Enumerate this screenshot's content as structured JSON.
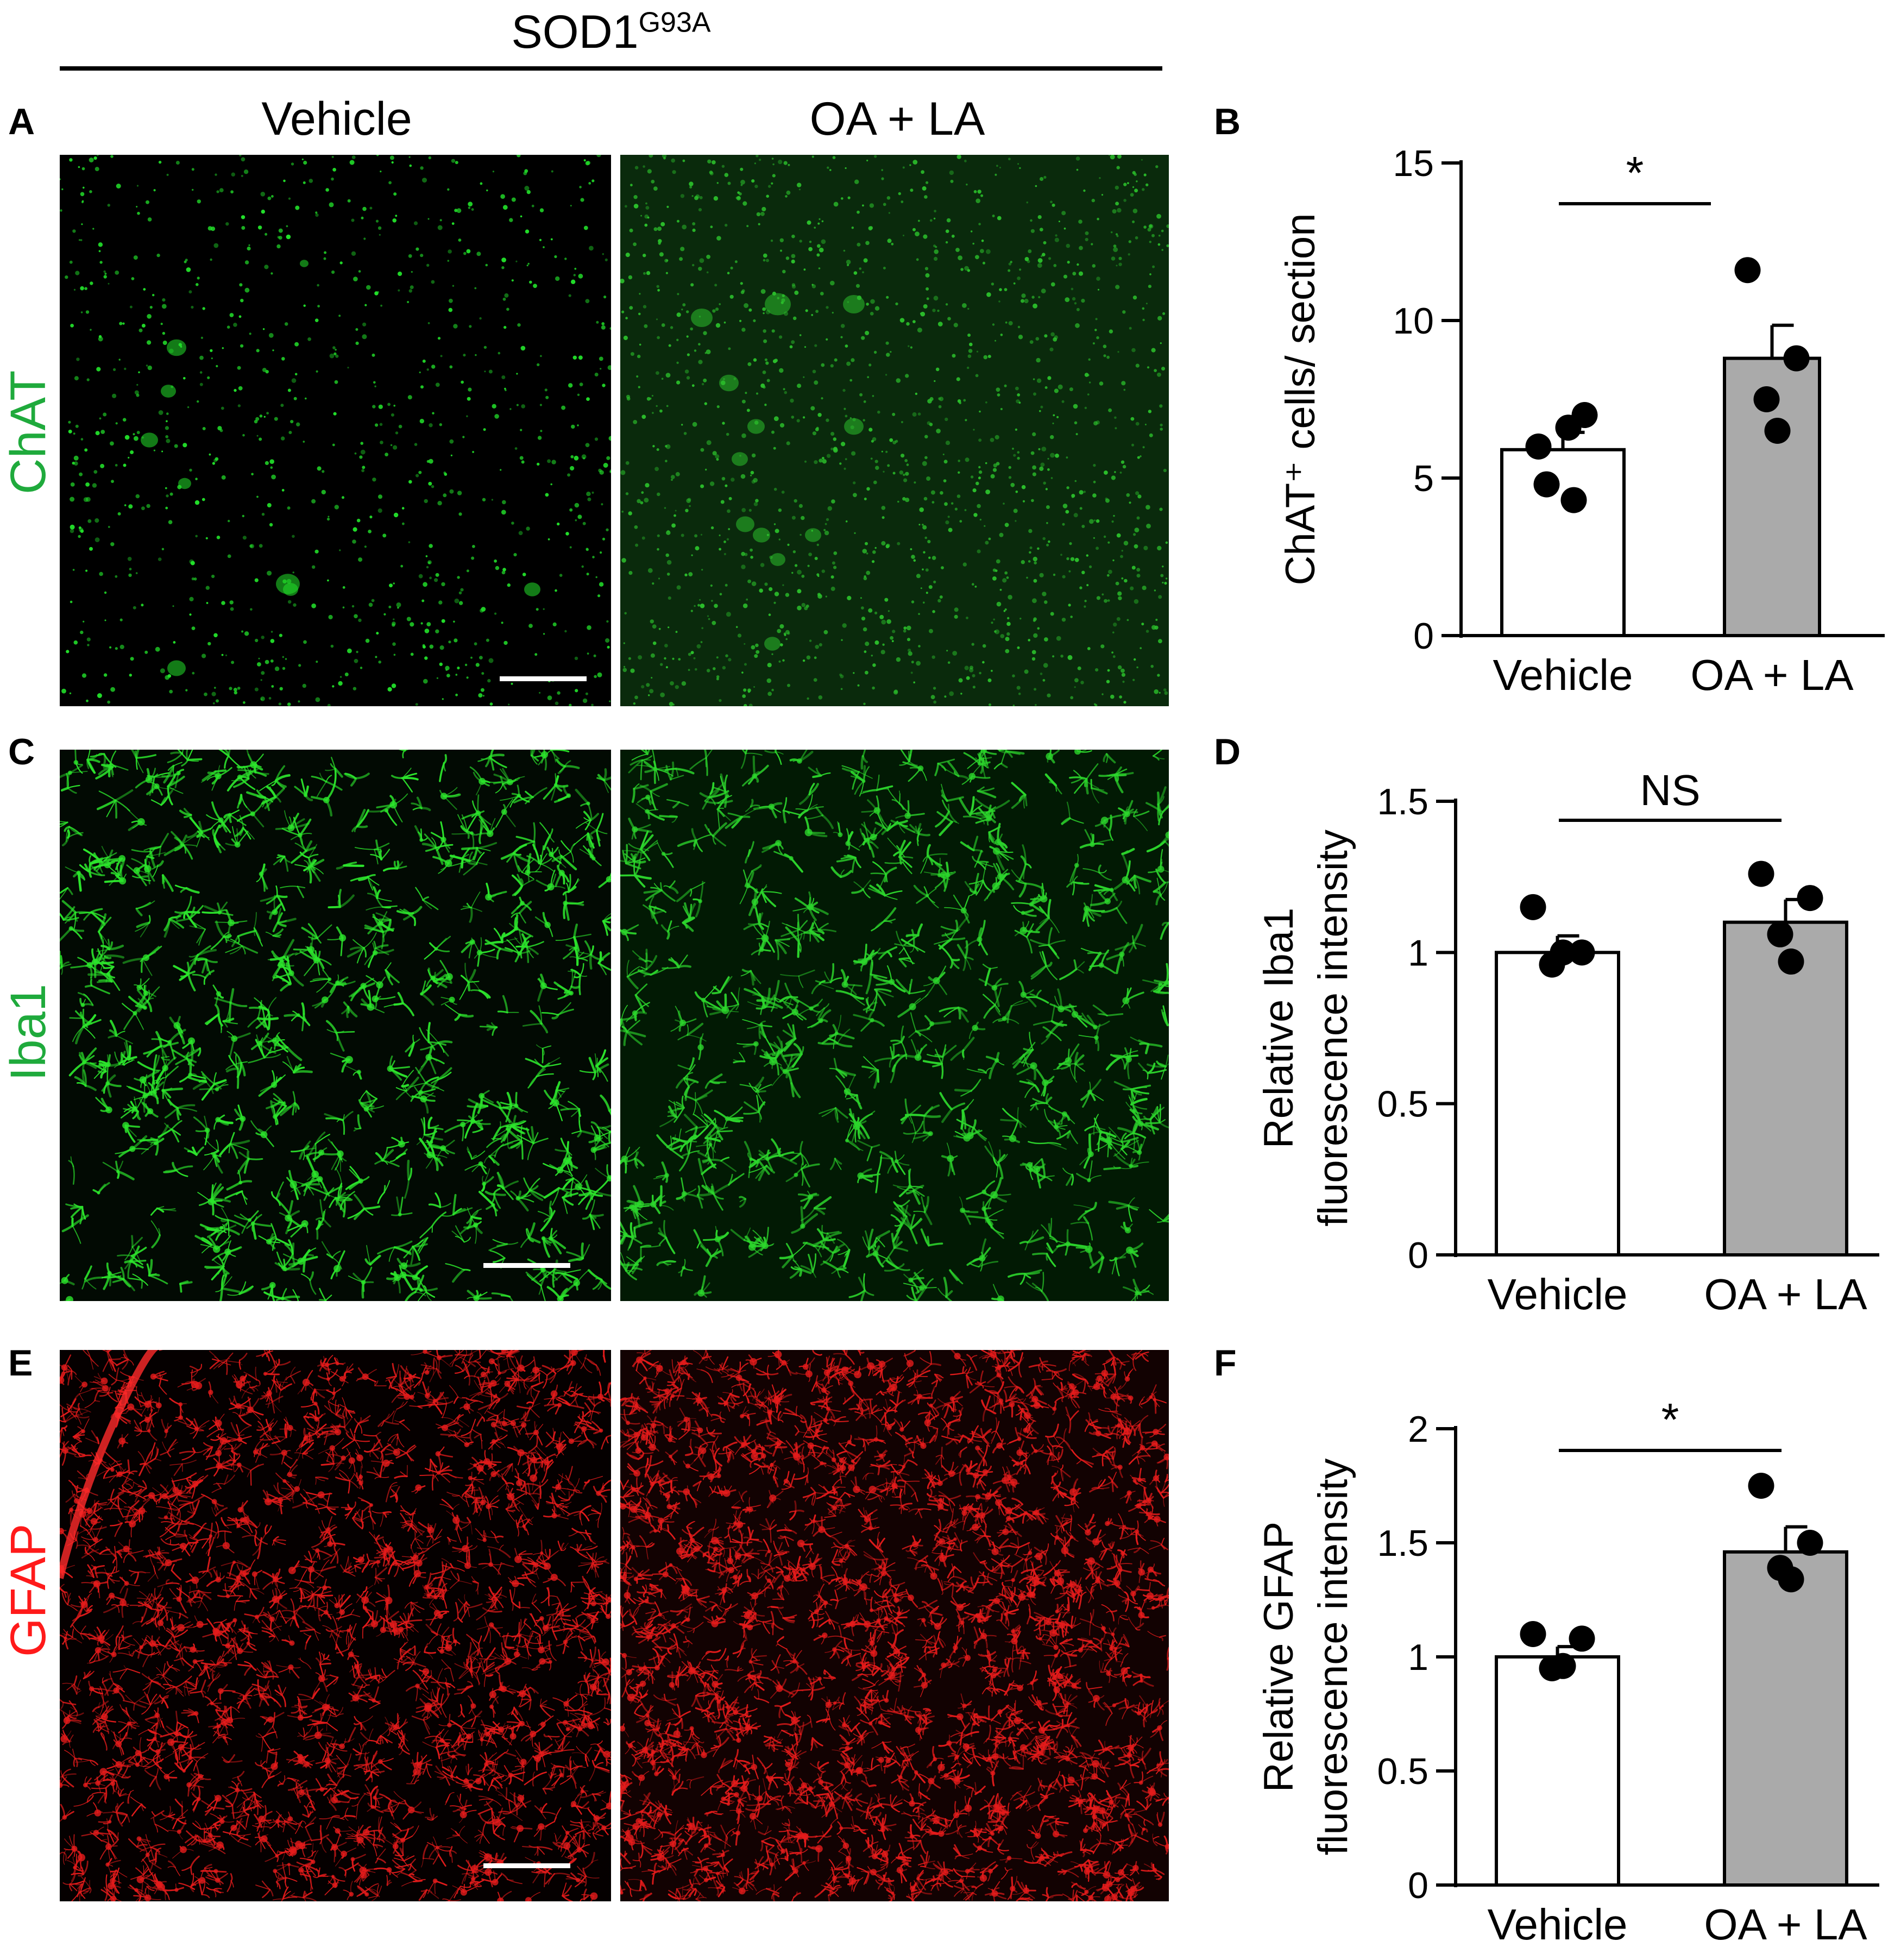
{
  "header": {
    "title": "SOD1",
    "title_sup": "G93A"
  },
  "columns": {
    "left": "Vehicle",
    "right": "OA + LA"
  },
  "panels": {
    "a": "A",
    "b": "B",
    "c": "C",
    "d": "D",
    "e": "E",
    "f": "F"
  },
  "rows": [
    {
      "label": "ChAT",
      "color": "#1faa3c"
    },
    {
      "label": "Iba1",
      "color": "#1faa3c"
    },
    {
      "label": "GFAP",
      "color": "#ff1a1a"
    }
  ],
  "colors": {
    "green_signal": "#22e02a",
    "red_signal": "#e41b1b",
    "bar_vehicle": "#ffffff",
    "bar_oala": "#aaaaaa"
  },
  "chart_data": [
    {
      "type": "bar",
      "panel": "B",
      "categories": [
        "Vehicle",
        "OA + LA"
      ],
      "values": [
        5.9,
        8.8
      ],
      "errors": [
        0.55,
        1.05
      ],
      "points": [
        [
          6.0,
          7.0,
          6.6,
          4.8,
          4.3
        ],
        [
          11.6,
          8.8,
          7.5,
          6.5
        ]
      ],
      "ylabel": "ChAT⁺ cells/ section",
      "ylim": [
        0,
        15
      ],
      "yticks": [
        "0",
        "5",
        "10",
        "15"
      ],
      "ytick_values": [
        0,
        5,
        10,
        15
      ],
      "significance": "*"
    },
    {
      "type": "bar",
      "panel": "D",
      "categories": [
        "Vehicle",
        "OA + LA"
      ],
      "values": [
        1.0,
        1.1
      ],
      "errors": [
        0.055,
        0.075
      ],
      "points": [
        [
          1.15,
          1.0,
          0.96,
          1.0
        ],
        [
          1.26,
          1.18,
          1.06,
          0.97
        ]
      ],
      "ylabel": [
        "Relative Iba1",
        "fluorescence intensity"
      ],
      "ylim": [
        0,
        1.5
      ],
      "yticks": [
        "0",
        "0.5",
        "1",
        "1.5"
      ],
      "ytick_values": [
        0,
        0.5,
        1,
        1.5
      ],
      "significance": "NS"
    },
    {
      "type": "bar",
      "panel": "F",
      "categories": [
        "Vehicle",
        "OA + LA"
      ],
      "values": [
        1.0,
        1.46
      ],
      "errors": [
        0.045,
        0.11
      ],
      "points": [
        [
          1.1,
          1.08,
          0.95,
          0.96
        ],
        [
          1.75,
          1.5,
          1.39,
          1.34
        ]
      ],
      "ylabel": [
        "Relative GFAP",
        "fluorescence intensity"
      ],
      "ylim": [
        0,
        2
      ],
      "yticks": [
        "0",
        "0.5",
        "1",
        "1.5",
        "2"
      ],
      "ytick_values": [
        0,
        0.5,
        1,
        1.5,
        2
      ],
      "significance": "*"
    }
  ]
}
